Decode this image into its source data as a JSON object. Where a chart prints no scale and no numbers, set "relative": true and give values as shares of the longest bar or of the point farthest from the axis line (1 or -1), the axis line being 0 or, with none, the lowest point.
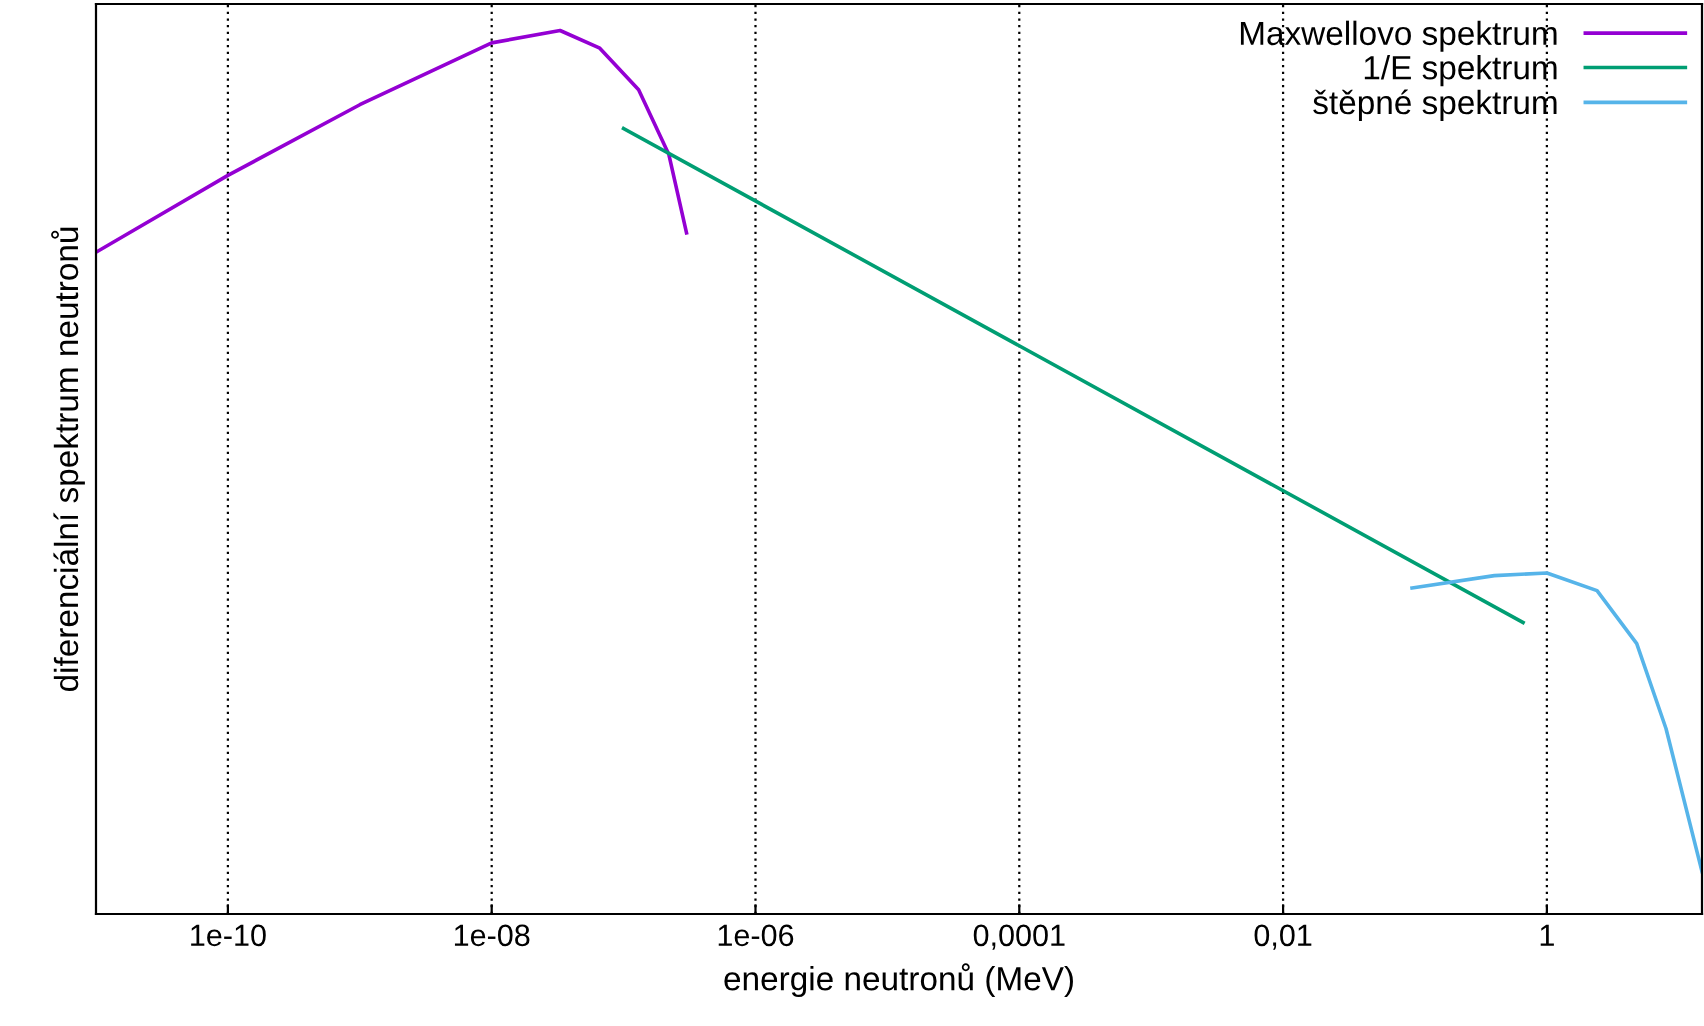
{
  "chart_data": {
    "type": "line",
    "relative": true,
    "log": "x",
    "grid": "x",
    "legend": "top right",
    "tick_labels": "x",
    "xlabel": "energie neutronů (MeV)",
    "ylabel": "diferenciální spektrum neutronů",
    "xlim": [
      1e-11,
      15
    ],
    "xticks": [
      {
        "value": 1e-10,
        "label": "1e-10"
      },
      {
        "value": 1e-08,
        "label": "1e-08"
      },
      {
        "value": 1e-06,
        "label": "1e-06"
      },
      {
        "value": 0.0001,
        "label": "0,0001"
      },
      {
        "value": 0.01,
        "label": "0,01"
      },
      1
    ],
    "series": [
      {
        "name": "Maxwellovo spektrum",
        "color": "#9400d3",
        "x": [
          1e-11,
          1e-10,
          1e-09,
          1e-08,
          3.3e-08,
          6.6e-08,
          1.3e-07,
          2.2e-07,
          3e-07
        ],
        "values": [
          0.749,
          0.836,
          0.916,
          0.986,
          1.0,
          0.98,
          0.933,
          0.86,
          0.771
        ]
      },
      {
        "name": "1/E spektrum",
        "color": "#009e73",
        "x": [
          1e-07,
          0.66
        ],
        "values": [
          0.889,
          0.33
        ]
      },
      {
        "name": "štěpné spektrum",
        "color": "#56b4e9",
        "x": [
          0.095,
          0.4,
          1,
          2.4,
          4.8,
          8,
          15
        ],
        "values": [
          0.369,
          0.383,
          0.386,
          0.366,
          0.306,
          0.21,
          0.048
        ]
      }
    ]
  }
}
